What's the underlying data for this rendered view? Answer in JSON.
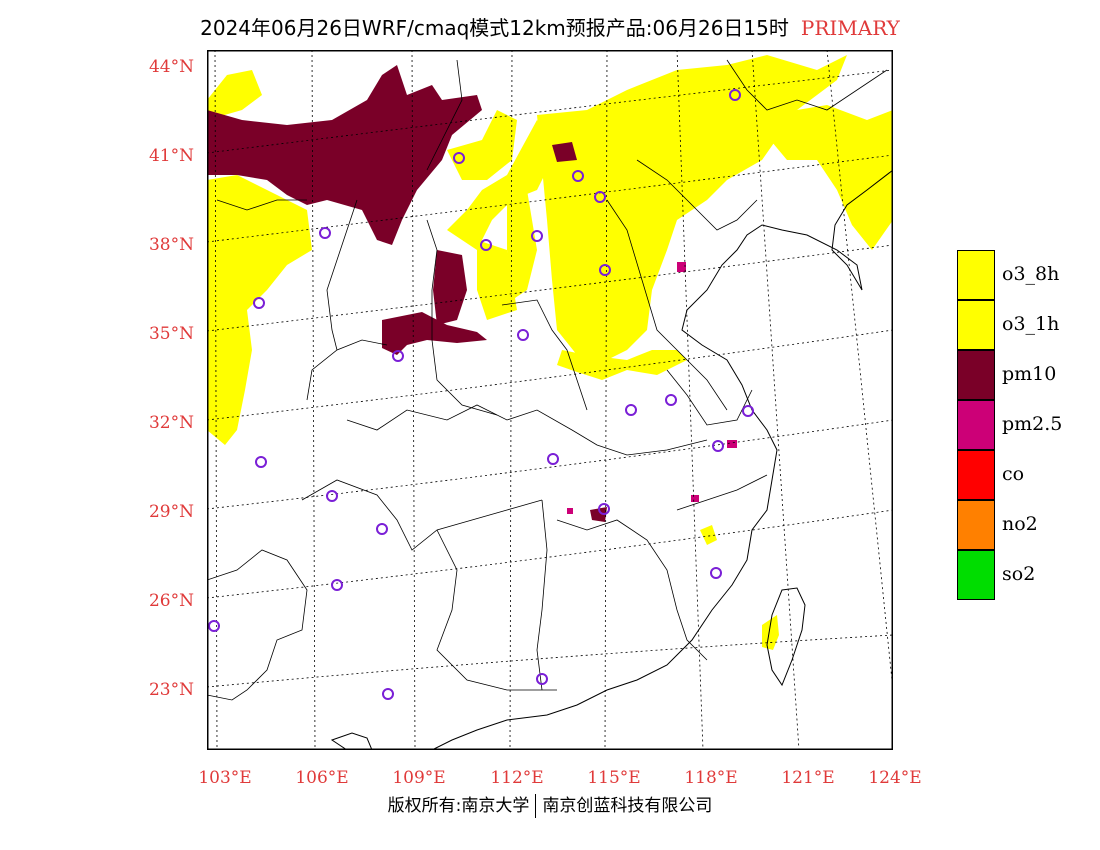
{
  "title": {
    "main": "2024年06月26日WRF/cmaq模式12km预报产品:06月26日15时",
    "tag": "PRIMARY"
  },
  "lat_labels": [
    "44°N",
    "41°N",
    "38°N",
    "35°N",
    "32°N",
    "29°N",
    "26°N",
    "23°N"
  ],
  "lon_labels": [
    "103°E",
    "106°E",
    "109°E",
    "112°E",
    "115°E",
    "118°E",
    "121°E",
    "124°E"
  ],
  "legend": [
    {
      "label": "o3_8h",
      "color": "#ffff00"
    },
    {
      "label": "o3_1h",
      "color": "#ffff00"
    },
    {
      "label": "pm10",
      "color": "#7a0028"
    },
    {
      "label": "pm2.5",
      "color": "#cc0077"
    },
    {
      "label": "co",
      "color": "#ff0000"
    },
    {
      "label": "no2",
      "color": "#ff8000"
    },
    {
      "label": "so2",
      "color": "#00dd00"
    }
  ],
  "footer": {
    "left": "版权所有:南京大学",
    "right": "南京创蓝科技有限公司"
  },
  "colors": {
    "accent": "#e03a3a",
    "station": "#7a1fd6"
  }
}
